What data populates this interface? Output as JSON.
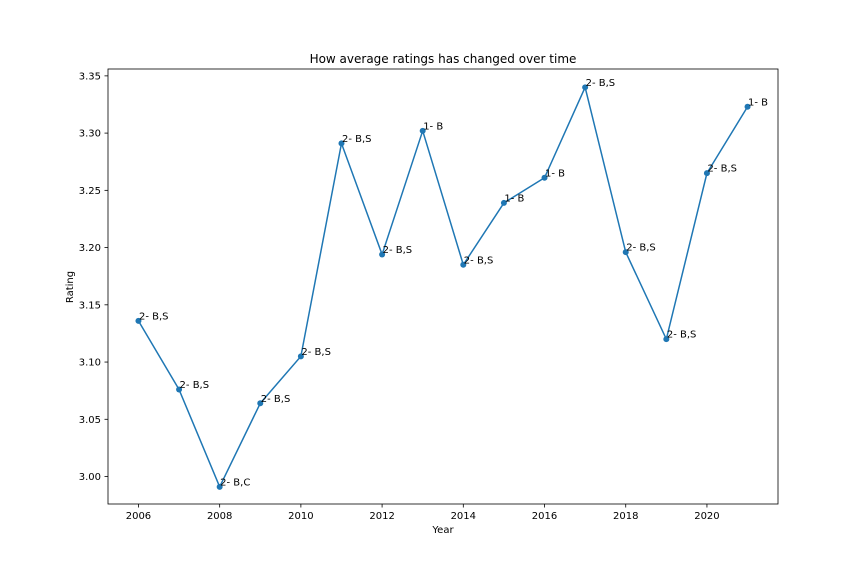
{
  "chart_data": {
    "type": "line",
    "title": "How average ratings has changed over time",
    "xlabel": "Year",
    "ylabel": "Rating",
    "xlim": [
      2005.25,
      2021.75
    ],
    "ylim": [
      2.976,
      3.356
    ],
    "xticks": [
      2006,
      2008,
      2010,
      2012,
      2014,
      2016,
      2018,
      2020
    ],
    "xtick_labels": [
      "2006",
      "2008",
      "2010",
      "2012",
      "2014",
      "2016",
      "2018",
      "2020"
    ],
    "yticks": [
      3.0,
      3.05,
      3.1,
      3.15,
      3.2,
      3.25,
      3.3,
      3.35
    ],
    "ytick_labels": [
      "3.00",
      "3.05",
      "3.10",
      "3.15",
      "3.20",
      "3.25",
      "3.30",
      "3.35"
    ],
    "grid": false,
    "color": "#1f77b4",
    "series": [
      {
        "x": [
          2006,
          2007,
          2008,
          2009,
          2010,
          2011,
          2012,
          2013,
          2014,
          2015,
          2016,
          2017,
          2018,
          2019,
          2020,
          2021
        ],
        "values": [
          3.136,
          3.076,
          2.991,
          3.064,
          3.105,
          3.291,
          3.194,
          3.302,
          3.185,
          3.239,
          3.261,
          3.34,
          3.196,
          3.12,
          3.265,
          3.323
        ],
        "labels": [
          "2- B,S",
          "2- B,S",
          "2- B,C",
          "2- B,S",
          "2- B,S",
          "2- B,S",
          "2- B,S",
          "1- B",
          "2- B,S",
          "1- B",
          "1- B",
          "2- B,S",
          "2- B,S",
          "2- B,S",
          "2- B,S",
          "1- B"
        ]
      }
    ]
  }
}
